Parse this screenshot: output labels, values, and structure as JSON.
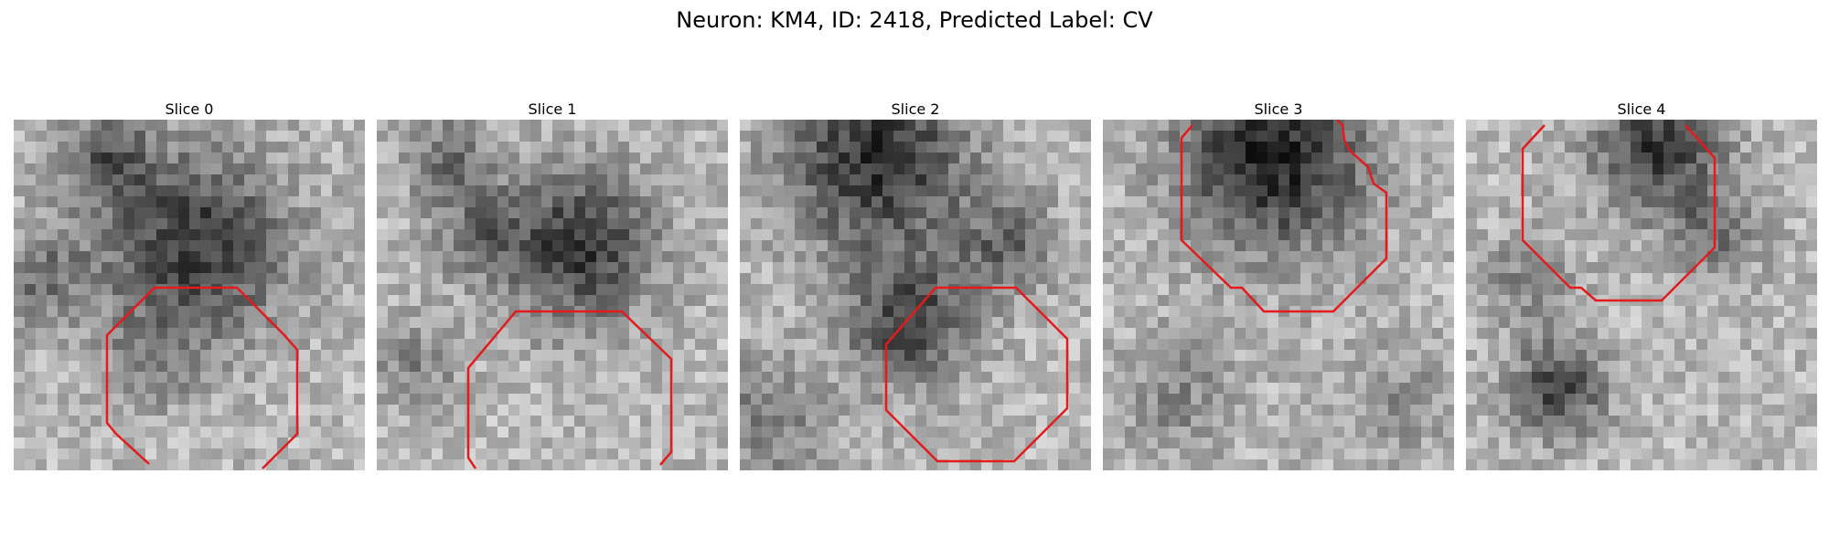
{
  "figure": {
    "title": "Neuron: KM4, ID: 2418, Predicted Label: CV",
    "contour_color": "#e41a1c",
    "colormap": "grayscale",
    "panels": [
      {
        "title": "Slice 0"
      },
      {
        "title": "Slice 1"
      },
      {
        "title": "Slice 2"
      },
      {
        "title": "Slice 3"
      },
      {
        "title": "Slice 4"
      }
    ]
  }
}
